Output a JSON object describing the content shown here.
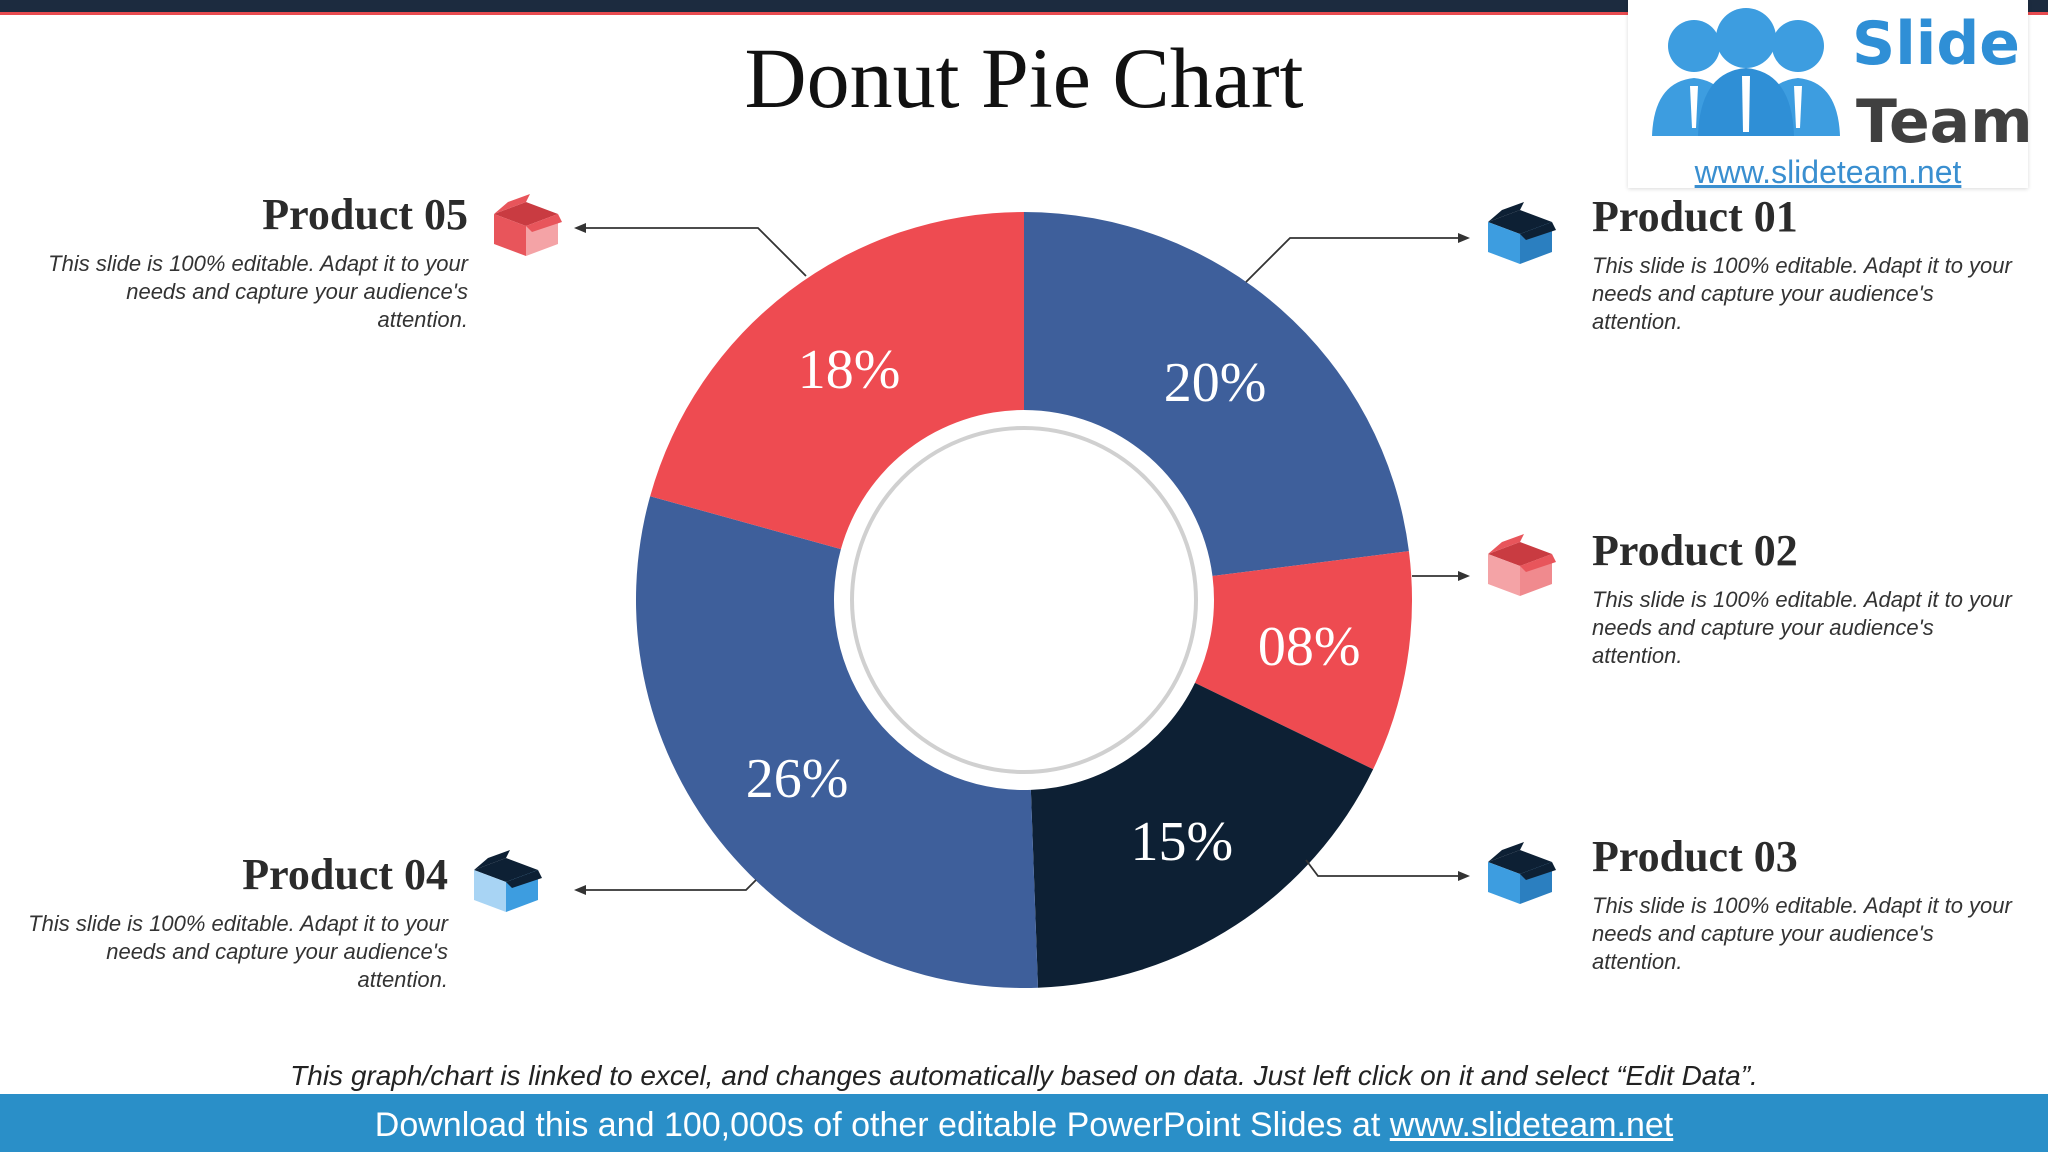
{
  "slide": {
    "title": "Donut Pie Chart",
    "footnote": "This graph/chart is linked to excel, and changes automatically based on data. Just left click on it and select “Edit Data”.",
    "footer_prefix": "Download this and 100,000s of other editable PowerPoint Slides at ",
    "footer_link": "www.slideteam.net"
  },
  "logo": {
    "word_1": "Slide",
    "word_2": "Team",
    "url": "www.slideteam.net"
  },
  "colors": {
    "blue": "#3e5f9b",
    "red": "#ee4b51",
    "navy": "#0d2034",
    "icon_red": "#e8555b",
    "icon_light_blue": "#3d9de0"
  },
  "products": [
    {
      "title": "Product 01",
      "desc": "This slide is 100% editable. Adapt it to your needs and capture your audience's attention.",
      "icon": "box-icon-blue"
    },
    {
      "title": "Product 02",
      "desc": "This slide is 100% editable. Adapt it to your needs and capture your audience's attention.",
      "icon": "box-icon-red"
    },
    {
      "title": "Product 03",
      "desc": "This slide is 100% editable. Adapt it to your needs and capture your audience's attention.",
      "icon": "box-icon-blue"
    },
    {
      "title": "Product 04",
      "desc": "This slide is 100% editable. Adapt it to your needs and capture your audience's attention.",
      "icon": "box-icon-blue"
    },
    {
      "title": "Product 05",
      "desc": "This slide is 100% editable. Adapt it to your needs and capture your audience's attention.",
      "icon": "box-icon-red"
    }
  ],
  "chart_data": {
    "type": "pie",
    "variant": "donut",
    "title": "Donut Pie Chart",
    "categories": [
      "Product 01",
      "Product 02",
      "Product 03",
      "Product 04",
      "Product 05"
    ],
    "values": [
      20,
      8,
      15,
      26,
      18
    ],
    "labels": [
      "20%",
      "08%",
      "15%",
      "26%",
      "18%"
    ],
    "colors": [
      "#3e5f9b",
      "#ee4b51",
      "#0d2034",
      "#3e5f9b",
      "#ee4b51"
    ],
    "start_angle_deg": 0,
    "direction": "clockwise"
  }
}
